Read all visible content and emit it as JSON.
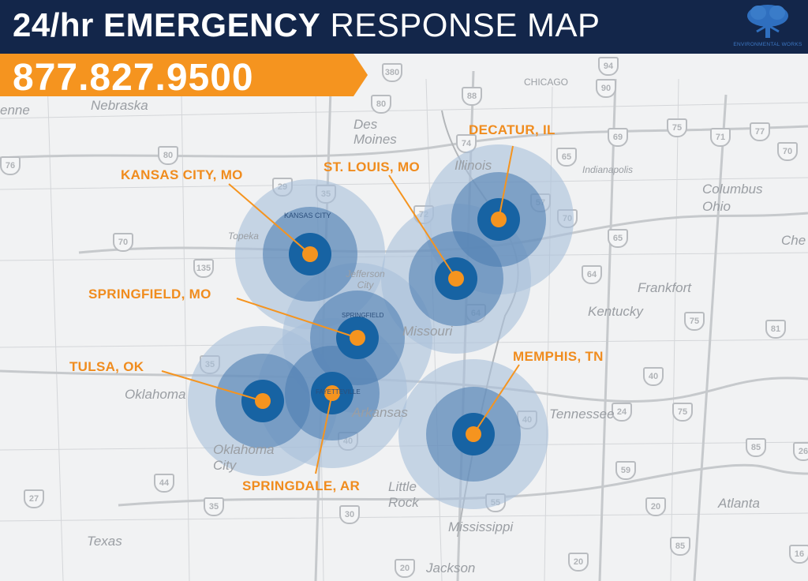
{
  "header": {
    "title_bold": "24/hr EMERGENCY",
    "title_light": "RESPONSE MAP",
    "logo_text": "ENVIRONMENTAL WORKS",
    "phone": "877.827.9500"
  },
  "colors": {
    "header_bg": "#13264a",
    "accent_orange": "#f5941f",
    "coverage_outer": "#a9c0db",
    "coverage_mid": "#4f7fb3",
    "coverage_inner": "#1763a3"
  },
  "locations": [
    {
      "label": "KANSAS CITY, MO",
      "icon": "location-dot-icon"
    },
    {
      "label": "ST. LOUIS, MO",
      "icon": "location-dot-icon"
    },
    {
      "label": "DECATUR, IL",
      "icon": "location-dot-icon"
    },
    {
      "label": "SPRINGFIELD, MO",
      "icon": "location-dot-icon"
    },
    {
      "label": "TULSA, OK",
      "icon": "location-dot-icon"
    },
    {
      "label": "SPRINGDALE, AR",
      "icon": "location-dot-icon"
    },
    {
      "label": "MEMPHIS, TN",
      "icon": "location-dot-icon"
    }
  ],
  "map": {
    "places": [
      "Nebraska",
      "Des Moines",
      "CHICAGO",
      "Indianapolis",
      "Columbus",
      "Ohio",
      "Topeka",
      "Jefferson City",
      "Missouri",
      "Kentucky",
      "Frankfort",
      "Oklahoma",
      "Oklahoma City",
      "Arkansas",
      "Little Rock",
      "Tennessee",
      "Mississippi",
      "Atlanta",
      "Texas",
      "Jackson",
      "Illinois",
      "KANSAS CITY",
      "SPRINGFIELD",
      "FAYETTEVILLE",
      "enne",
      "Che"
    ],
    "shields": [
      "380",
      "80",
      "88",
      "94",
      "90",
      "80",
      "74",
      "65",
      "69",
      "75",
      "71",
      "77",
      "70",
      "76",
      "29",
      "35",
      "70",
      "135",
      "72",
      "57",
      "70",
      "64",
      "64",
      "65",
      "75",
      "81",
      "40",
      "35",
      "44",
      "40",
      "30",
      "40",
      "24",
      "75",
      "85",
      "26",
      "27",
      "35",
      "20",
      "20",
      "55",
      "59",
      "85",
      "16",
      "20"
    ]
  }
}
